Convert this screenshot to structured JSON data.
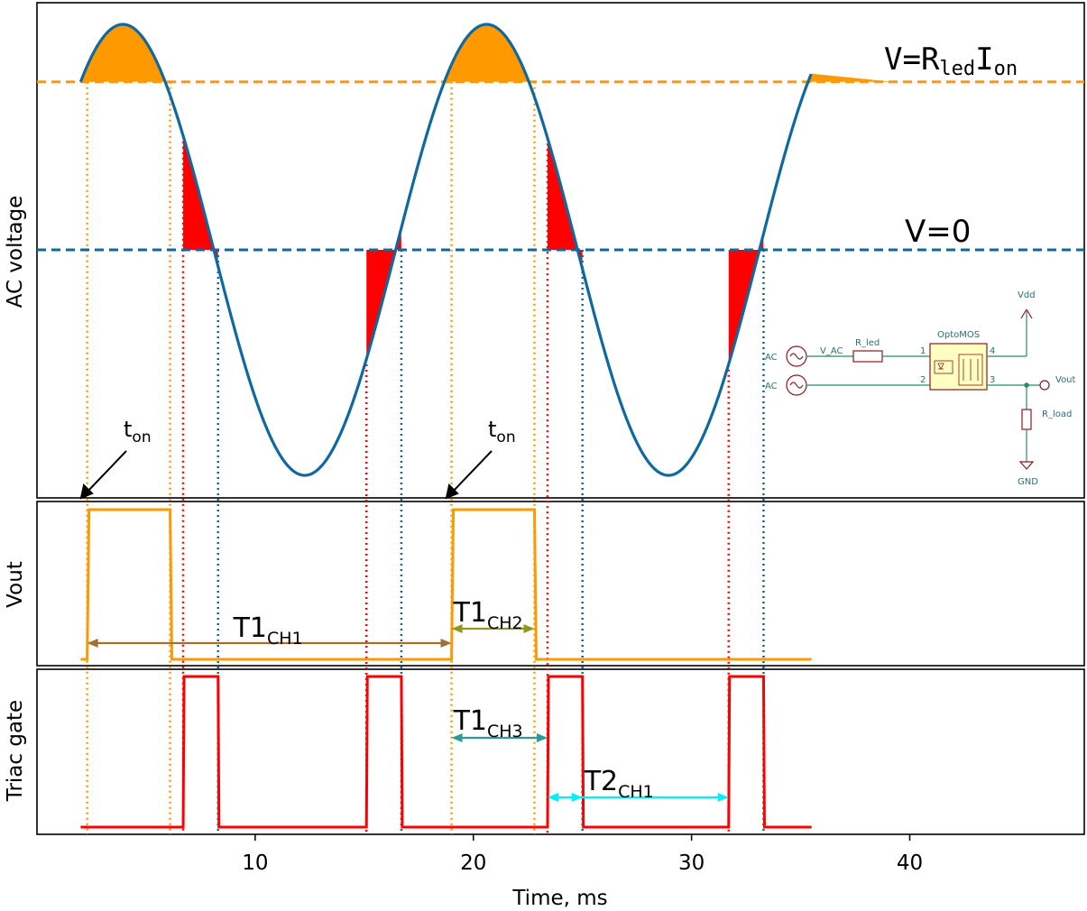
{
  "chart_data": {
    "type": "line",
    "xlabel": "Time, ms",
    "x_ticks": [
      10,
      20,
      30,
      40
    ],
    "xlim": [
      0,
      48
    ],
    "series_params": {
      "period_ms": 16.67,
      "sine_start_ms": 2.0,
      "sine_end_ms": 35.5,
      "threshold_fraction": 0.745
    },
    "panels": [
      {
        "ylabel": "AC voltage",
        "annotations": {
          "level_high": {
            "prefix": "V=R",
            "sub1": "led",
            "mid": "I",
            "sub2": "on"
          },
          "level_zero": "V=0",
          "ton_label": {
            "base": "t",
            "sub": "on"
          }
        },
        "ton_times_ms": [
          2.3,
          19.0
        ]
      },
      {
        "ylabel": "Vout",
        "pulses_ms": [
          [
            2.3,
            6.1
          ],
          [
            19.0,
            22.8
          ]
        ],
        "measurements": [
          {
            "base": "T1",
            "sub": "CH1",
            "from_ms": 2.3,
            "to_ms": 19.0,
            "color": "#a0703a"
          },
          {
            "base": "T1",
            "sub": "CH2",
            "from_ms": 19.0,
            "to_ms": 22.8,
            "color": "#8f9a1c"
          }
        ]
      },
      {
        "ylabel": "Triac gate",
        "pulses_ms": [
          [
            6.7,
            8.3
          ],
          [
            15.1,
            16.7
          ],
          [
            23.4,
            25.0
          ],
          [
            31.7,
            33.3
          ]
        ],
        "measurements": [
          {
            "base": "T1",
            "sub": "CH3",
            "from_ms": 19.0,
            "to_ms": 23.4,
            "color": "#2a9a9a"
          },
          {
            "base": "T2",
            "sub": "CH1",
            "from_ms": 23.4,
            "to_ms": 31.7,
            "color": "#00f0ff",
            "label_at_ms": 25.0
          }
        ]
      }
    ],
    "colors": {
      "sine": "#0f68a0",
      "threshold": "#ff9900",
      "zero_line": "#0f68a0",
      "gate": "#ff0000",
      "fill_above": "#ff9900",
      "fill_red": "#ff0000"
    }
  },
  "schematic": {
    "vdd": "Vdd",
    "gnd": "GND",
    "optomos": "OptoMOS",
    "r_led": "R_led",
    "v_ac": "V_AC",
    "r_load": "R_load",
    "vout": "Vout",
    "ac1": "AC",
    "ac2": "AC",
    "pins": [
      "1",
      "2",
      "3",
      "4"
    ]
  }
}
